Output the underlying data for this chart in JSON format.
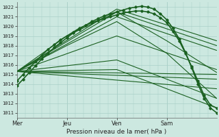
{
  "xlabel": "Pression niveau de la mer( hPa )",
  "bg_color": "#cce8e0",
  "grid_color": "#aad0c8",
  "line_color": "#1a6020",
  "ylim": [
    1010.5,
    1022.5
  ],
  "yticks": [
    1011,
    1012,
    1013,
    1014,
    1015,
    1016,
    1017,
    1018,
    1019,
    1020,
    1021,
    1022
  ],
  "xlim": [
    0,
    192
  ],
  "day_positions": [
    0,
    48,
    96,
    144
  ],
  "day_labels": [
    "Mer",
    "Jeu",
    "Ven",
    "Sam"
  ],
  "straight_lines": [
    {
      "x": [
        0,
        192
      ],
      "y": [
        1015.3,
        1015.0
      ]
    },
    {
      "x": [
        0,
        192
      ],
      "y": [
        1015.3,
        1014.5
      ]
    },
    {
      "x": [
        0,
        192
      ],
      "y": [
        1015.3,
        1013.5
      ]
    },
    {
      "x": [
        0,
        96,
        192
      ],
      "y": [
        1015.3,
        1021.8,
        1018.5
      ]
    },
    {
      "x": [
        0,
        96,
        192
      ],
      "y": [
        1015.3,
        1021.5,
        1018.0
      ]
    },
    {
      "x": [
        0,
        96,
        192
      ],
      "y": [
        1015.3,
        1021.0,
        1017.5
      ]
    },
    {
      "x": [
        0,
        96,
        192
      ],
      "y": [
        1015.3,
        1019.0,
        1015.5
      ]
    },
    {
      "x": [
        0,
        96,
        192
      ],
      "y": [
        1015.3,
        1016.5,
        1012.5
      ]
    },
    {
      "x": [
        0,
        96,
        192
      ],
      "y": [
        1015.3,
        1015.5,
        1011.5
      ]
    },
    {
      "x": [
        0,
        48,
        96,
        144,
        192
      ],
      "y": [
        1015.3,
        1019.0,
        1021.5,
        1018.5,
        1015.2
      ]
    },
    {
      "x": [
        0,
        48,
        96,
        144,
        192
      ],
      "y": [
        1015.3,
        1018.0,
        1020.5,
        1017.2,
        1012.5
      ]
    }
  ],
  "dotted_lines": [
    {
      "x": [
        0,
        6,
        12,
        18,
        24,
        30,
        36,
        42,
        48,
        54,
        60,
        66,
        72,
        78,
        84,
        90,
        96,
        102,
        108,
        114,
        120,
        126,
        132,
        138,
        144,
        150,
        156,
        162,
        168,
        174,
        180,
        186,
        192
      ],
      "y": [
        1013.8,
        1014.5,
        1015.2,
        1015.9,
        1016.6,
        1017.2,
        1017.8,
        1018.3,
        1018.8,
        1019.3,
        1019.7,
        1020.1,
        1020.5,
        1020.8,
        1021.1,
        1021.3,
        1021.5,
        1021.7,
        1021.9,
        1022.0,
        1022.1,
        1022.0,
        1021.8,
        1021.3,
        1020.7,
        1019.8,
        1018.7,
        1017.3,
        1015.7,
        1014.0,
        1012.5,
        1011.5,
        1011.0
      ]
    },
    {
      "x": [
        0,
        6,
        12,
        18,
        24,
        30,
        36,
        42,
        48,
        54,
        60,
        66,
        72,
        78,
        84,
        90,
        96,
        102,
        108,
        114,
        120,
        126,
        132,
        138,
        144,
        150,
        156,
        162,
        168,
        174,
        180,
        186,
        192
      ],
      "y": [
        1014.3,
        1015.0,
        1015.7,
        1016.3,
        1017.0,
        1017.6,
        1018.1,
        1018.6,
        1019.0,
        1019.4,
        1019.8,
        1020.1,
        1020.4,
        1020.6,
        1020.8,
        1021.0,
        1021.2,
        1021.4,
        1021.5,
        1021.6,
        1021.6,
        1021.5,
        1021.3,
        1020.9,
        1020.4,
        1019.5,
        1018.5,
        1017.2,
        1015.8,
        1014.3,
        1012.8,
        1011.8,
        1011.5
      ]
    }
  ]
}
